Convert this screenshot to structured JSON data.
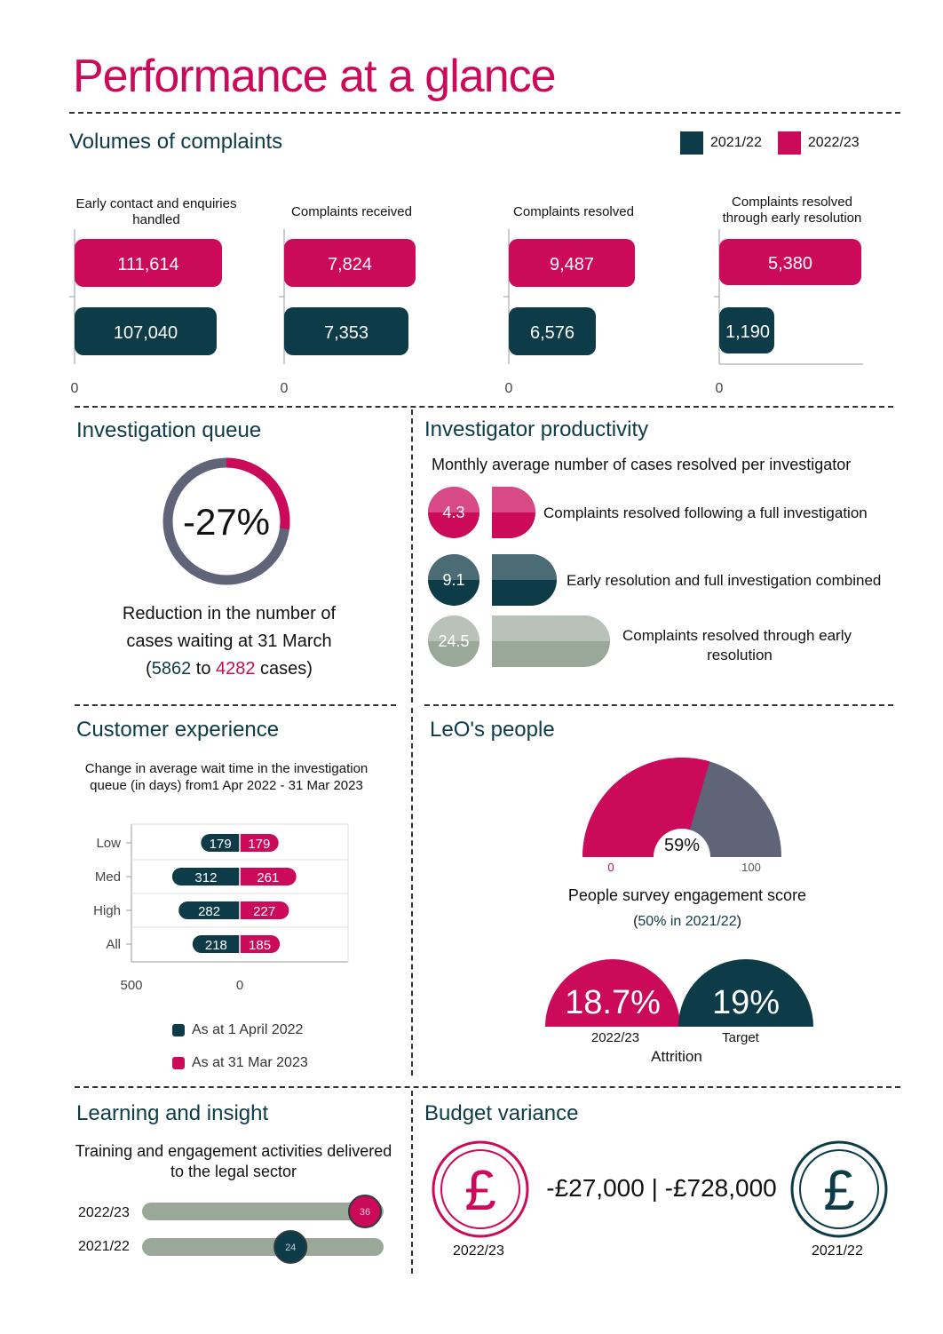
{
  "page": {
    "title": "Performance at a glance"
  },
  "colors": {
    "magenta": "#cc0a5a",
    "teal": "#0d3b47",
    "slate": "#5f6479",
    "sage": "#9aa89a",
    "sage_light": "#b8c2b8"
  },
  "volumes": {
    "heading": "Volumes of complaints",
    "legend": [
      "2021/22",
      "2022/23"
    ],
    "zero_label": "0",
    "charts": [
      {
        "label_line1": "Early contact and enquiries",
        "label_line2": "handled",
        "v2023": "111,614",
        "v2022": "107,040"
      },
      {
        "label_line1": "Complaints received",
        "label_line2": "",
        "v2023": "7,824",
        "v2022": "7,353"
      },
      {
        "label_line1": "Complaints resolved",
        "label_line2": "",
        "v2023": "9,487",
        "v2022": "6,576"
      },
      {
        "label_line1": "Complaints resolved",
        "label_line2": "through early resolution",
        "v2023": "5,380",
        "v2022": "1,190"
      }
    ]
  },
  "queue": {
    "heading": "Investigation queue",
    "percent": "-27%",
    "ring_fraction": 0.27,
    "line1": "Reduction in the number of",
    "line2": "cases waiting at 31 March",
    "line3_open": "(",
    "from": "5862",
    "to_word": " to ",
    "to": "4282",
    "line3_close": " cases)"
  },
  "productivity": {
    "heading": "Investigator productivity",
    "subheading": "Monthly average number of cases resolved per investigator",
    "items": [
      {
        "value": "4.3",
        "label": "Complaints resolved following a full investigation",
        "label2": ""
      },
      {
        "value": "9.1",
        "label": "Early resolution and full investigation combined",
        "label2": ""
      },
      {
        "value": "24.5",
        "label": "Complaints resolved through early",
        "label2": "resolution"
      }
    ]
  },
  "customer": {
    "heading": "Customer experience",
    "sub1": "Change in average wait time in the investigation",
    "sub2": "queue (in days) from1 Apr 2022 - 31 Mar 2023",
    "axis_left": "500",
    "axis_zero": "0",
    "legend_2022": "As at 1 April 2022",
    "legend_2023": "As at 31 Mar 2023"
  },
  "chart_data": {
    "type": "bar",
    "orientation": "diverging-horizontal",
    "categories": [
      "Low",
      "Med",
      "High",
      "All"
    ],
    "series": [
      {
        "name": "As at 1 April 2022",
        "values": [
          179,
          312,
          282,
          218
        ]
      },
      {
        "name": "As at 31 Mar 2023",
        "values": [
          179,
          261,
          227,
          185
        ]
      }
    ],
    "xlim_left": [
      500,
      0
    ]
  },
  "people": {
    "heading": "LeO's people",
    "gauge_value": "59%",
    "gauge_fraction": 0.59,
    "gauge_min": "0",
    "gauge_max": "100",
    "engagement_label": "People survey engagement score",
    "prev_open": "(",
    "prev_value": "50% in 2021/22",
    "prev_close": ")",
    "attrition_value": "18.7%",
    "attrition_year": "2022/23",
    "target_value": "19%",
    "target_label": "Target",
    "attrition_label": "Attrition"
  },
  "learning": {
    "heading": "Learning and insight",
    "sub1": "Training and engagement activities delivered",
    "sub2": "to the legal sector",
    "rows": [
      {
        "year": "2022/23",
        "value": "36",
        "fraction": 0.92
      },
      {
        "year": "2021/22",
        "value": "24",
        "fraction": 0.6
      }
    ]
  },
  "budget": {
    "heading": "Budget variance",
    "values": "-£27,000 | -£728,000",
    "year_left": "2022/23",
    "year_right": "2021/22",
    "pound": "£"
  }
}
